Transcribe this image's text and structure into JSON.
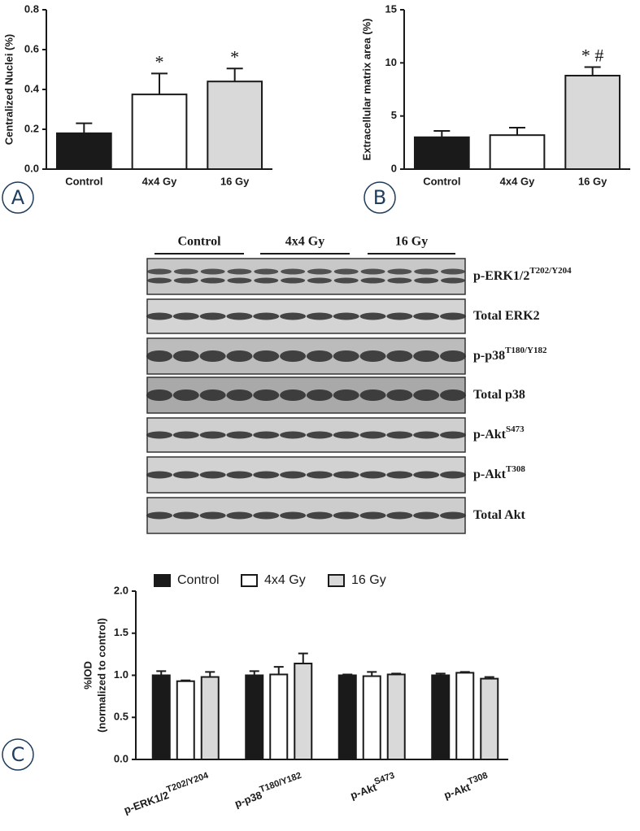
{
  "panel_labels": [
    "A",
    "B",
    "C"
  ],
  "chart_data": [
    {
      "type": "bar",
      "ylabel": "Centralized Nuclei (%)",
      "categories": [
        "Control",
        "4x4 Gy",
        "16 Gy"
      ],
      "values": [
        0.18,
        0.375,
        0.44
      ],
      "errors": [
        0.05,
        0.105,
        0.065
      ],
      "colors": [
        "#1a1a1a",
        "#ffffff",
        "#d9d9d9"
      ],
      "annotations": [
        null,
        "*",
        "*"
      ],
      "ylim": [
        0,
        0.8
      ],
      "yticks": [
        {
          "value": 0,
          "label": "0.0"
        },
        0.2,
        0.4,
        0.6,
        0.8
      ]
    },
    {
      "type": "bar",
      "ylabel": "Extracellular matrix area (%)",
      "categories": [
        "Control",
        "4x4 Gy",
        "16 Gy"
      ],
      "values": [
        3.0,
        3.2,
        8.8
      ],
      "errors": [
        0.6,
        0.7,
        0.8
      ],
      "colors": [
        "#1a1a1a",
        "#ffffff",
        "#d9d9d9"
      ],
      "annotations": [
        null,
        null,
        "* #"
      ],
      "ylim": [
        0,
        15
      ],
      "yticks": [
        0,
        5,
        10,
        15
      ]
    },
    {
      "type": "grouped_bar",
      "ylabel": [
        "%IOD",
        "(normalized to control)"
      ],
      "categories": [
        {
          "name": "p-ERK1/2",
          "sup": "T202/Y204"
        },
        {
          "name": "p-p38",
          "sup": "T180/Y182"
        },
        {
          "name": "p-Akt",
          "sup": "S473"
        },
        {
          "name": "p-Akt",
          "sup": "T308"
        }
      ],
      "series": [
        {
          "name": "Control",
          "color": "#1a1a1a",
          "values": [
            1.0,
            1.0,
            1.0,
            1.0
          ],
          "errors": [
            0.05,
            0.05,
            0.01,
            0.02
          ]
        },
        {
          "name": "4x4 Gy",
          "color": "#ffffff",
          "values": [
            0.93,
            1.01,
            0.99,
            1.03
          ],
          "errors": [
            0.01,
            0.09,
            0.05,
            0.01
          ]
        },
        {
          "name": "16 Gy",
          "color": "#d9d9d9",
          "values": [
            0.98,
            1.14,
            1.01,
            0.96
          ],
          "errors": [
            0.06,
            0.12,
            0.01,
            0.02
          ]
        }
      ],
      "legend": "top",
      "ylim": [
        0,
        2
      ],
      "yticks": [
        {
          "value": 0,
          "label": "0.0"
        },
        0.5,
        {
          "value": 1,
          "label": "1.0"
        },
        1.5,
        {
          "value": 2,
          "label": "2.0"
        }
      ]
    }
  ],
  "blot": {
    "groups": [
      "Control",
      "4x4 Gy",
      "16 Gy"
    ],
    "rows": [
      {
        "name": "p-ERK1/2",
        "sup": "T202/Y204"
      },
      {
        "name": "Total ERK2"
      },
      {
        "name": "p-p38",
        "sup": "T180/Y182"
      },
      {
        "name": "Total p38"
      },
      {
        "name": "p-Akt",
        "sup": "S473"
      },
      {
        "name": "p-Akt",
        "sup": "T308"
      },
      {
        "name": "Total Akt"
      }
    ]
  }
}
